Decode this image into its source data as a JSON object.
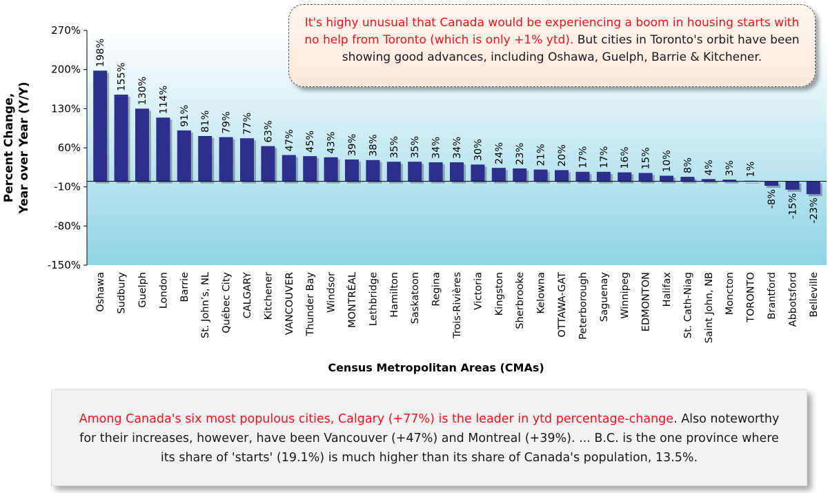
{
  "chart_data": {
    "type": "bar",
    "title": "",
    "xlabel": "Census Metropolitan Areas (CMAs)",
    "ylabel_line1": "Percent Change,",
    "ylabel_line2": "Year over Year (Y/Y)",
    "ylim": [
      -150,
      270
    ],
    "yticks": [
      -150,
      -80,
      -10,
      60,
      130,
      200,
      270
    ],
    "ytick_labels": [
      "-150%",
      "-80%",
      "-10%",
      "60%",
      "130%",
      "200%",
      "270%"
    ],
    "categories": [
      "Oshawa",
      "Sudbury",
      "Guelph",
      "London",
      "Barrie",
      "St. John’s, NL",
      "Québec City",
      "CALGARY",
      "Kitchener",
      "VANCOUVER",
      "Thunder Bay",
      "Windsor",
      "MONTRÉAL",
      "Lethbridge",
      "Hamilton",
      "Saskatoon",
      "Regina",
      "Trois-Rivières",
      "Victoria",
      "Kingston",
      "Sherbrooke",
      "Kelowna",
      "OTTAWA-GAT",
      "Peterborough",
      "Saguenay",
      "Winnipeg",
      "EDMONTON",
      "Halifax",
      "St. Cath-Niag",
      "Saint John, NB",
      "Moncton",
      "TORONTO",
      "Brantford",
      "Abbotsford",
      "Belleville"
    ],
    "values": [
      198,
      155,
      130,
      114,
      91,
      81,
      79,
      77,
      63,
      47,
      45,
      43,
      39,
      38,
      35,
      35,
      34,
      34,
      30,
      24,
      23,
      21,
      20,
      17,
      17,
      16,
      15,
      10,
      8,
      4,
      3,
      1,
      -8,
      -15,
      -23
    ],
    "data_labels": [
      "198%",
      "155%",
      "130%",
      "114%",
      "91%",
      "81%",
      "79%",
      "77%",
      "63%",
      "47%",
      "45%",
      "43%",
      "39%",
      "38%",
      "35%",
      "35%",
      "34%",
      "34%",
      "30%",
      "24%",
      "23%",
      "21%",
      "20%",
      "17%",
      "17%",
      "16%",
      "15%",
      "10%",
      "8%",
      "4%",
      "3%",
      "1%",
      "-8%",
      "-15%",
      "-23%"
    ],
    "grid": false,
    "colors": {
      "bar": "#2e2e8f",
      "plot_top": "#ffffff",
      "plot_bottom": "#8fd4e6",
      "axis": "#000000"
    }
  },
  "callout_top": {
    "red_text": "It's highy unusual that Canada would be experiencing a boom in housing starts with no help from Toronto (which is only +1% ytd).",
    "black_text": "But cities in Toronto's orbit have been showing good advances, including Oshawa, Guelph, Barrie & Kitchener."
  },
  "callout_bottom": {
    "red_text": "Among Canada's six most populous cities, Calgary (+77%) is the leader in ytd percentage-change",
    "black_text": ". Also noteworthy for their increases, however, have been Vancouver (+47%) and Montreal (+39%). ... B.C. is the one province where its share of 'starts' (19.1%) is much higher than its share of Canada's population, 13.5%."
  }
}
